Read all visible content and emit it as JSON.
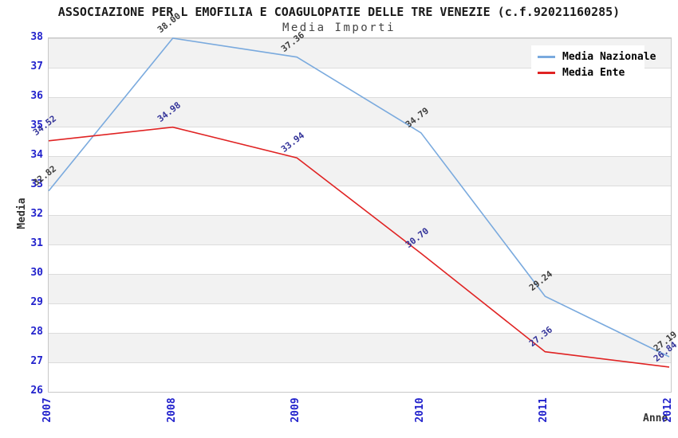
{
  "title": "ASSOCIAZIONE PER L EMOFILIA E COAGULOPATIE DELLE TRE VENEZIE (c.f.92021160285)",
  "subtitle": "Media Importi",
  "legend": [
    {
      "label": "Media Nazionale",
      "color": "#7aaade"
    },
    {
      "label": "Media Ente",
      "color": "#e02323"
    }
  ],
  "colors": {
    "axis_tick_text": "#2222cc",
    "plot_border": "#c8c8c8",
    "gridline": "#dcdcdc",
    "band_gray": "#f2f2f2",
    "band_white": "#ffffff"
  },
  "chart_data": {
    "type": "line",
    "x": [
      "2007",
      "2008",
      "2009",
      "2010",
      "2011",
      "2012"
    ],
    "series": [
      {
        "name": "Media Nazionale",
        "color": "#7aaade",
        "label_color": "#3c3c3c",
        "values": [
          32.82,
          38.0,
          37.36,
          34.79,
          29.24,
          27.19
        ]
      },
      {
        "name": "Media Ente",
        "color": "#e02323",
        "label_color": "#333399",
        "values": [
          34.52,
          34.98,
          33.94,
          30.7,
          27.36,
          26.84
        ]
      }
    ],
    "title": "ASSOCIAZIONE PER L EMOFILIA E COAGULOPATIE DELLE TRE VENEZIE (c.f.92021160285)",
    "subtitle": "Media Importi",
    "xlabel": "Anno",
    "ylabel": "Media",
    "ylim": [
      26,
      38
    ],
    "y_ticks": [
      38,
      37,
      36,
      35,
      34,
      33,
      32,
      31,
      30,
      29,
      28,
      27,
      26
    ],
    "grid": "horizontal",
    "legend_position": "top-right",
    "point_label_decimals": 2
  }
}
